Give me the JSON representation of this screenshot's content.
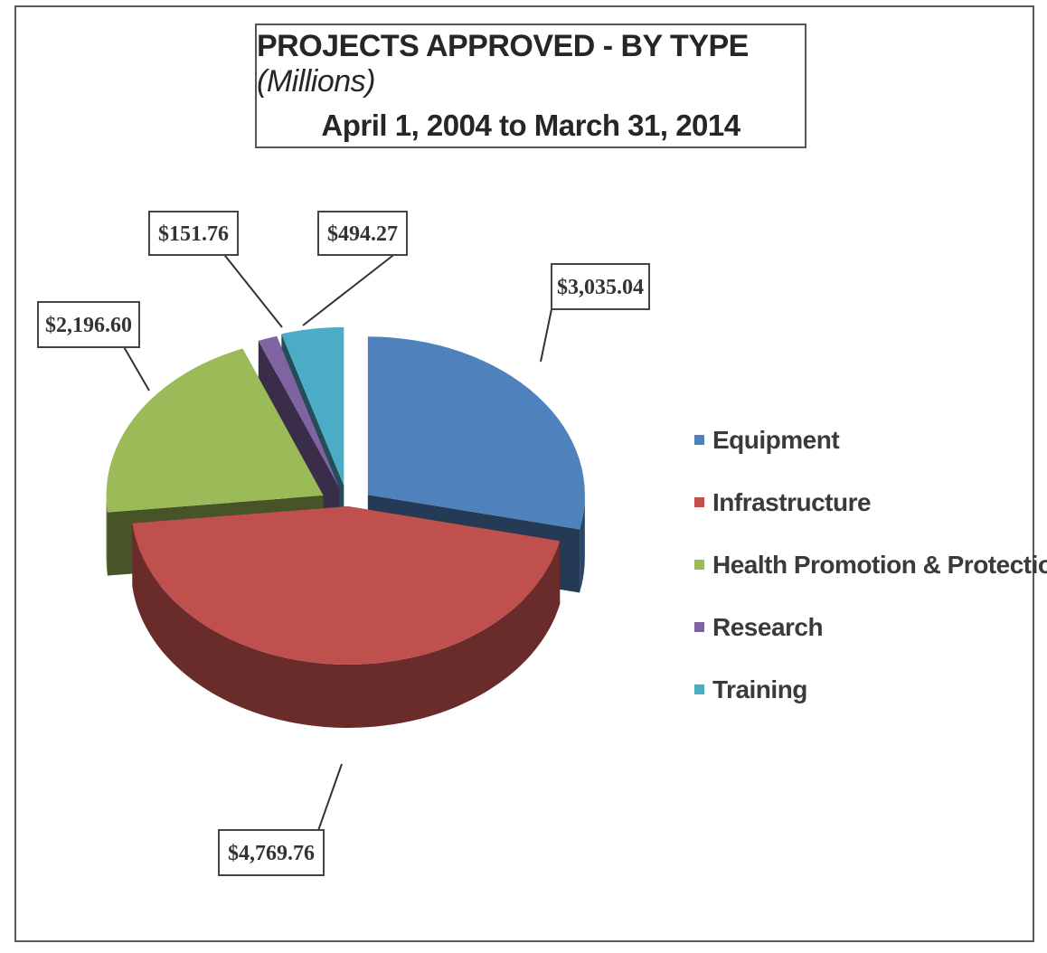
{
  "chart_data": {
    "type": "pie",
    "title": "PROJECTS APPROVED - BY TYPE",
    "title_unit": "(Millions)",
    "subtitle": "April 1, 2004 to March 31, 2014",
    "categories": [
      "Equipment",
      "Infrastructure",
      "Health Promotion & Protection",
      "Research",
      "Training"
    ],
    "values": [
      3035.04,
      4769.76,
      2196.6,
      151.76,
      494.27
    ],
    "data_labels": [
      "$3,035.04",
      "$4,769.76",
      "$2,196.60",
      "$151.76",
      "$494.27"
    ],
    "colors": [
      "#4f81bd",
      "#c0504d",
      "#9bbb59",
      "#8064a2",
      "#4bacc6"
    ],
    "style": "3d-exploded",
    "legend_position": "right"
  }
}
